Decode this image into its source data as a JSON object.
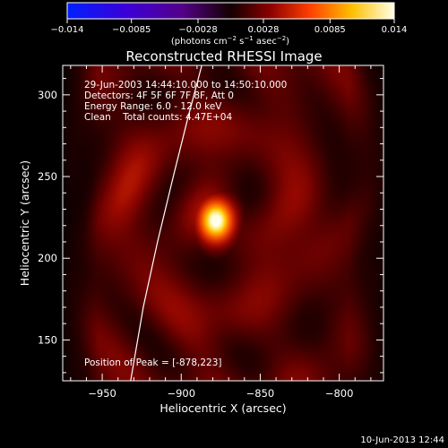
{
  "colors": {
    "background": "#000000",
    "foreground": "#ffffff",
    "limb": "#ffffff"
  },
  "colorbar": {
    "tick_labels": [
      "−0.014",
      "−0.0085",
      "−0.0028",
      "0.0028",
      "0.0085",
      "0.014"
    ],
    "min": -0.014,
    "max": 0.014,
    "unit_main": "(photons cm",
    "unit_exp1": "−2",
    "unit_mid": " s",
    "unit_exp2": "−1",
    "unit_mid2": " asec",
    "unit_exp3": "−2",
    "unit_end": ")"
  },
  "chart_data": {
    "type": "heatmap",
    "title": "Reconstructed RHESSI Image",
    "xlabel": "Heliocentric X (arcsec)",
    "ylabel": "Heliocentric Y (arcsec)",
    "xlim": [
      -975,
      -772
    ],
    "ylim": [
      125,
      318
    ],
    "xticks": [
      -950,
      -900,
      -850,
      -800
    ],
    "yticks": [
      150,
      200,
      250,
      300
    ],
    "xtick_labels": [
      "−950",
      "−900",
      "−850",
      "−800"
    ],
    "ytick_labels": [
      "150",
      "200",
      "250",
      "300"
    ],
    "peak": [
      -878,
      223
    ],
    "grid": false,
    "colormap": "rainbow"
  },
  "info_lines": [
    "29-Jun-2003 14:44:10.000 to 14:50:10.000",
    "Detectors: 4F 5F 6F 7F 8F, Att 0",
    "Energy Range: 6.0 - 12.0 keV",
    "Clean    Total counts: 4.47E+04"
  ],
  "peak_text": "Position of Peak = [-878,223]",
  "footer_date": "10-Jun-2013 12:44"
}
